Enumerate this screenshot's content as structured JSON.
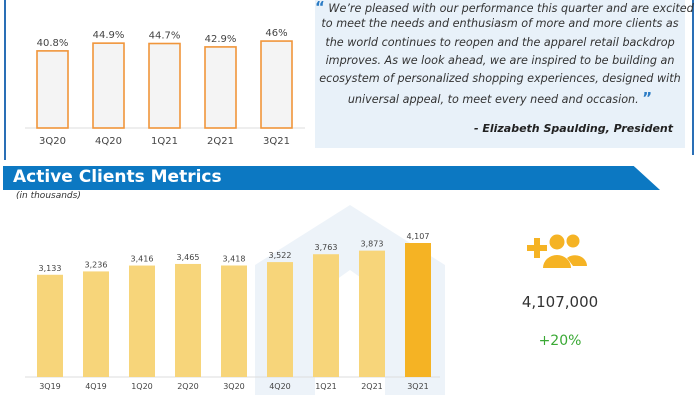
{
  "chart_data": [
    {
      "type": "bar",
      "title": "",
      "categories": [
        "3Q20",
        "4Q20",
        "1Q21",
        "2Q21",
        "3Q21"
      ],
      "values": [
        40.8,
        44.9,
        44.7,
        42.9,
        46
      ],
      "value_labels": [
        "40.8%",
        "44.9%",
        "44.7%",
        "42.9%",
        "46%"
      ],
      "ylim": [
        0,
        50
      ],
      "xlabel": "",
      "ylabel": ""
    },
    {
      "type": "bar",
      "title": "Active Clients Metrics",
      "subtitle": "(in thousands)",
      "categories": [
        "3Q19",
        "4Q19",
        "1Q20",
        "2Q20",
        "3Q20",
        "4Q20",
        "1Q21",
        "2Q21",
        "3Q21"
      ],
      "values": [
        3133,
        3236,
        3416,
        3465,
        3418,
        3522,
        3763,
        3873,
        4107
      ],
      "value_labels": [
        "3,133",
        "3,236",
        "3,416",
        "3,465",
        "3,418",
        "3,522",
        "3,763",
        "3,873",
        "4,107"
      ],
      "ylim": [
        0,
        4200
      ],
      "xlabel": "",
      "ylabel": ""
    }
  ],
  "quote": {
    "lines": [
      "We’re pleased with our performance this quarter and are excited",
      "to meet the needs and enthusiasm of more and more clients as",
      "the world continues to reopen and the apparel retail backdrop",
      "improves. As we look ahead, we are inspired to be building an",
      "ecosystem of personalized shopping experiences, designed with",
      "universal appeal, to meet every need and occasion."
    ],
    "open_mark": "“",
    "close_mark": "”",
    "author": "- Elizabeth Spaulding, President"
  },
  "section": {
    "title": "Active Clients Metrics",
    "subtitle": "(in thousands)"
  },
  "kpi": {
    "icon": "add-users-icon",
    "value": "4,107,000",
    "change": "+20%"
  },
  "colors": {
    "blue": "#0c78c2",
    "orange": "#f0953a",
    "yellow": "#f7d57a",
    "gold": "#f5b324",
    "green": "#3aa935"
  }
}
